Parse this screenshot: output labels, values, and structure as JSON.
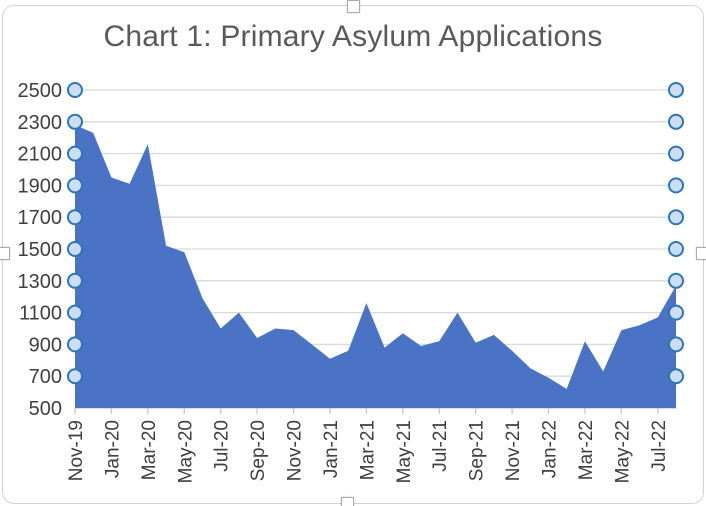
{
  "chart": {
    "title": "Chart 1: Primary Asylum Applications",
    "state": "selected",
    "colors": {
      "area_fill": "#4a73c5",
      "gridline": "#d9d9d9",
      "axis_line": "#c6c6c6",
      "tick_mark": "#c6c6c6",
      "title_text": "#595959",
      "axis_text": "#3f3f3f",
      "handle_fill": "#cbdef2",
      "handle_stroke": "#2e75b6",
      "selection_handle": "#ffffff"
    }
  },
  "chart_data": {
    "type": "area",
    "title": "Chart 1: Primary Asylum Applications",
    "x": [
      "Nov-19",
      "Dec-19",
      "Jan-20",
      "Feb-20",
      "Mar-20",
      "Apr-20",
      "May-20",
      "Jun-20",
      "Jul-20",
      "Aug-20",
      "Sep-20",
      "Oct-20",
      "Nov-20",
      "Dec-20",
      "Jan-21",
      "Feb-21",
      "Mar-21",
      "Apr-21",
      "May-21",
      "Jun-21",
      "Jul-21",
      "Aug-21",
      "Sep-21",
      "Oct-21",
      "Nov-21",
      "Dec-21",
      "Jan-22",
      "Feb-22",
      "Mar-22",
      "Apr-22",
      "May-22",
      "Jun-22",
      "Jul-22",
      "Aug-22"
    ],
    "values": [
      2280,
      2230,
      1950,
      1910,
      2160,
      1520,
      1480,
      1190,
      1000,
      1100,
      940,
      1000,
      990,
      900,
      810,
      860,
      1160,
      880,
      970,
      890,
      920,
      1100,
      910,
      960,
      860,
      750,
      690,
      620,
      920,
      730,
      990,
      1020,
      1070,
      1270
    ],
    "x_tick_labels": [
      "Nov-19",
      "Jan-20",
      "Mar-20",
      "May-20",
      "Jul-20",
      "Sep-20",
      "Nov-20",
      "Jan-21",
      "Mar-21",
      "May-21",
      "Jul-21",
      "Sep-21",
      "Nov-21",
      "Jan-22",
      "Mar-22",
      "May-22",
      "Jul-22"
    ],
    "x_tick_every": 2,
    "y_ticks": [
      500,
      700,
      900,
      1100,
      1300,
      1500,
      1700,
      1900,
      2100,
      2300,
      2500
    ],
    "ylim": [
      500,
      2500
    ],
    "xlabel": "",
    "ylabel": "",
    "grid": true,
    "legend": false,
    "series_name": "Primary Asylum Applications",
    "gridline_handle_levels": [
      700,
      900,
      1100,
      1300,
      1500,
      1700,
      1900,
      2100,
      2300,
      2500
    ]
  }
}
